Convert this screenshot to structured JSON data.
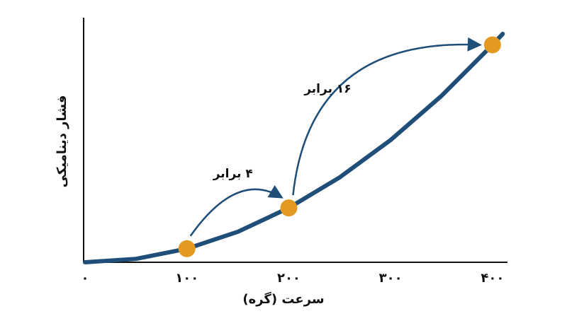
{
  "chart_data": {
    "type": "line",
    "x_label": "سرعت (گره)",
    "y_label": "فشار دینامیکی",
    "xlim": [
      0,
      414
    ],
    "ylim": [
      0,
      18
    ],
    "xticks": [
      {
        "value": 0,
        "label": "۰"
      },
      {
        "value": 100,
        "label": "۱۰۰"
      },
      {
        "value": 200,
        "label": "۲۰۰"
      },
      {
        "value": 300,
        "label": "۳۰۰"
      },
      {
        "value": 400,
        "label": "۴۰۰"
      }
    ],
    "x": [
      0,
      50,
      100,
      150,
      200,
      250,
      300,
      350,
      400,
      410
    ],
    "values": [
      0,
      0.25,
      1,
      2.25,
      4,
      6.25,
      9,
      12.25,
      16,
      16.81
    ],
    "color": "#1f4e79",
    "points": {
      "x": [
        100,
        200,
        400
      ],
      "values": [
        1,
        4,
        16
      ],
      "color": "#e39a22"
    },
    "annotations": [
      {
        "text": "۴ برابر"
      },
      {
        "text": "۱۶ برابر"
      }
    ]
  }
}
